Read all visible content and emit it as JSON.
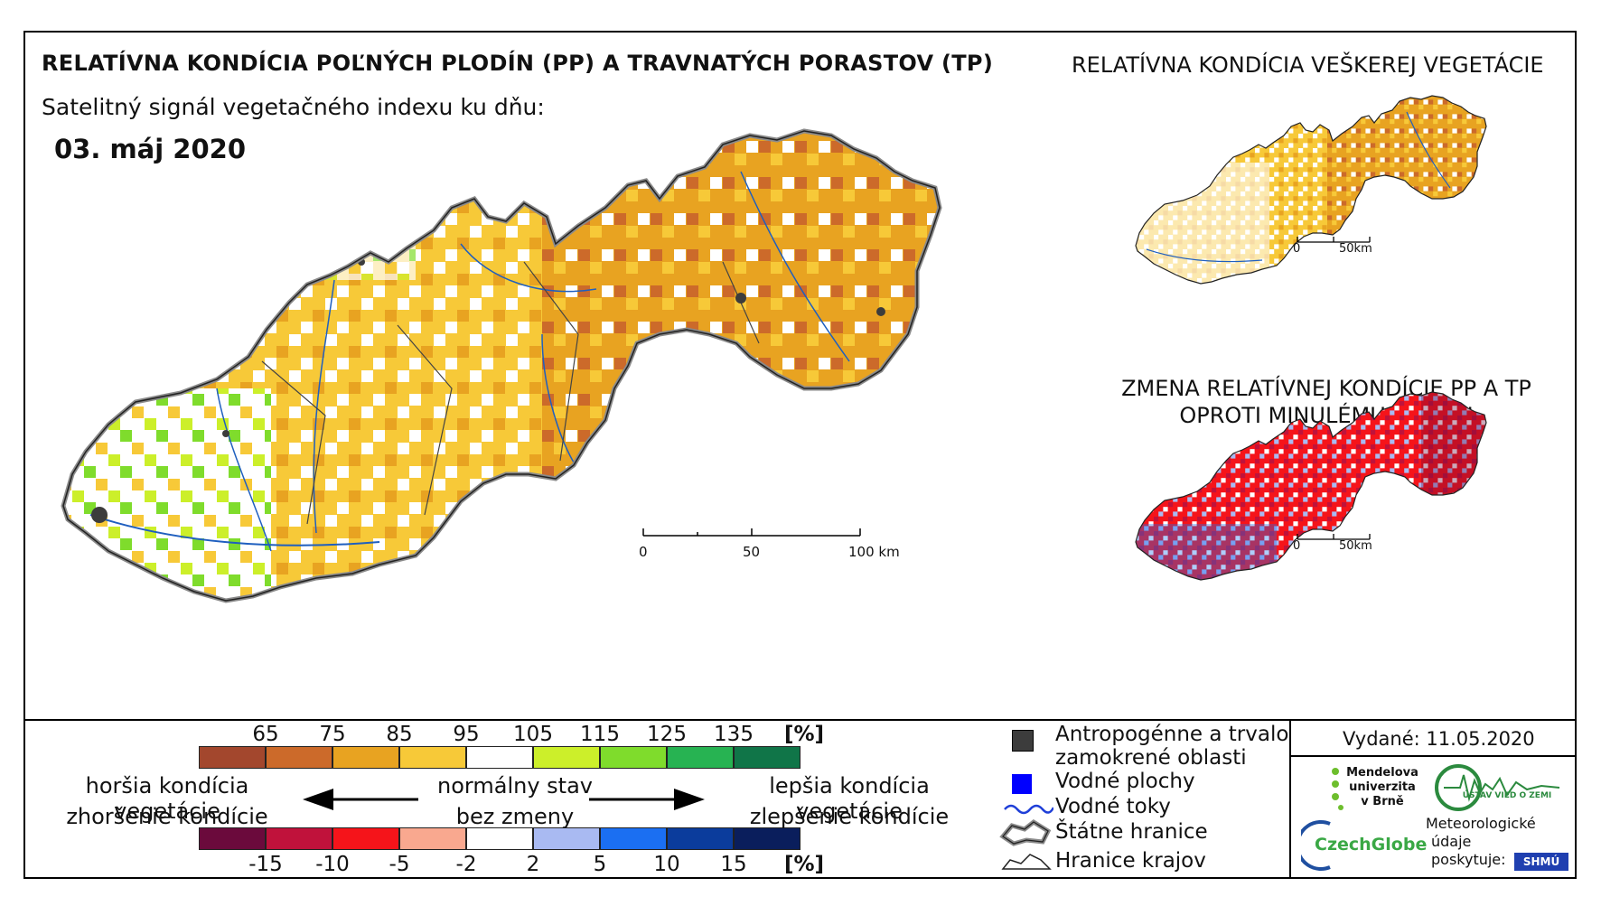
{
  "title_main": "RELATÍVNA KONDÍCIA POĽNÝCH PLODÍN (PP) A TRAVNATÝCH PORASTOV (TP)",
  "subtitle": "Satelitný signál vegetačného indexu ku dňu:",
  "date": "03. máj 2020",
  "title_right": "RELATÍVNA KONDÍCIA VEŠKEREJ VEGETÁCIE",
  "title_change_line1": "ZMENA RELATÍVNEJ KONDÍCIE PP A TP",
  "title_change_line2": "OPROTI MINULÉMU TÝŽDNI",
  "main_scale": {
    "l0": "0",
    "l1": "50",
    "l2": "100 km"
  },
  "small_scale": {
    "l0": "0",
    "l1": "50km"
  },
  "condition_ramp": {
    "labels": [
      "65",
      "75",
      "85",
      "95",
      "105",
      "115",
      "125",
      "135"
    ],
    "unit": "[%]",
    "colors": [
      "#a3472d",
      "#cc6a2a",
      "#e8a321",
      "#f7c938",
      "#ffffff",
      "#ccef2a",
      "#7fdc2c",
      "#27b352",
      "#107548"
    ]
  },
  "change_ramp": {
    "labels": [
      "-15",
      "-10",
      "-5",
      "-2",
      "2",
      "5",
      "10",
      "15"
    ],
    "unit": "[%]",
    "colors": [
      "#6b0a3c",
      "#c0123b",
      "#f5141a",
      "#f9a88f",
      "#ffffff",
      "#a9baf2",
      "#1b6ff2",
      "#0b3c9c",
      "#0a1e5c"
    ]
  },
  "worse_line1": "horšia kondícia vegetácie",
  "worse_line2": "zhoršenie kondície",
  "normal_line1": "normálny stav",
  "normal_line2": "bez zmeny",
  "better_line1": "lepšia kondícia vegetácie",
  "better_line2": "zlepšenie kondície",
  "legend": {
    "anthropogenic_line1": "Antropogénne a trvalo",
    "anthropogenic_line2": "zamokrené oblasti",
    "water_bodies": "Vodné plochy",
    "streams": "Vodné toky",
    "state_border": "Štátne hranice",
    "region_border": "Hranice krajov",
    "anthropogenic_color": "#3c3c3c",
    "water_color": "#0000ff"
  },
  "issued": "Vydané: 11.05.2020",
  "logos": {
    "mendel": [
      "Mendelova",
      "univerzita",
      "v Brně"
    ],
    "czechglobe": "CzechGlobe",
    "uvgz": "ÚSTAV VIED O ZEMI",
    "meteo_line1": "Meteorologické",
    "meteo_line2": "údaje",
    "meteo_line3": "poskytuje:",
    "shmu": "SHMÚ"
  }
}
